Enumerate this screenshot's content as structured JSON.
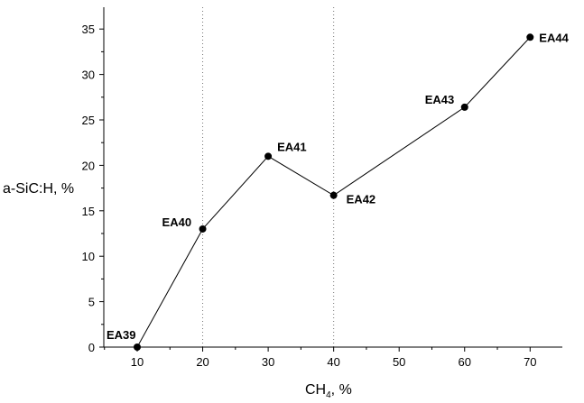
{
  "chart_data": {
    "type": "line",
    "xlabel": "CH",
    "xlabel_sub": "4",
    "xlabel_unit": ", %",
    "ylabel": "a-SiC:H, %",
    "xlim": [
      5,
      75
    ],
    "ylim": [
      0,
      37
    ],
    "xticks": [
      10,
      20,
      30,
      40,
      50,
      60,
      70
    ],
    "yticks": [
      0,
      5,
      10,
      15,
      20,
      25,
      30,
      35
    ],
    "gridlines": "dotted vertical at x=20 and x=40",
    "points": [
      {
        "label": "EA39",
        "x": 10,
        "y": 0
      },
      {
        "label": "EA40",
        "x": 20,
        "y": 13
      },
      {
        "label": "EA41",
        "x": 30,
        "y": 21
      },
      {
        "label": "EA42",
        "x": 40,
        "y": 16.7
      },
      {
        "label": "EA43",
        "x": 60,
        "y": 26.4
      },
      {
        "label": "EA44",
        "x": 70,
        "y": 34.1
      }
    ],
    "line_color": "#000000",
    "marker_color": "#000000"
  }
}
